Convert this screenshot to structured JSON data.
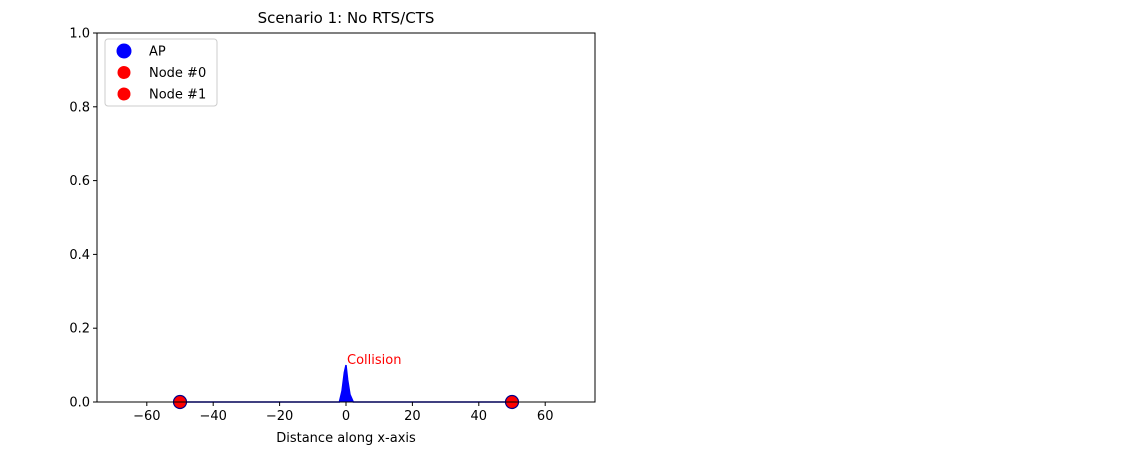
{
  "chart_data": {
    "type": "area",
    "title": "Scenario 1: No RTS/CTS",
    "xlabel": "Distance along x-axis",
    "ylabel": "",
    "xlim": [
      -75,
      75
    ],
    "ylim": [
      0,
      1.0
    ],
    "xticks": [
      -60,
      -40,
      -20,
      0,
      20,
      40,
      60
    ],
    "xtick_labels": [
      "−60",
      "−40",
      "−20",
      "0",
      "20",
      "40",
      "60"
    ],
    "yticks": [
      0.0,
      0.2,
      0.4,
      0.6,
      0.8,
      1.0
    ],
    "ytick_labels": [
      "0.0",
      "0.2",
      "0.4",
      "0.6",
      "0.8",
      "1.0"
    ],
    "grid": false,
    "legend_position": "top-left",
    "legend": [
      {
        "label": "AP",
        "color": "#0000ff",
        "marker": "large-circle"
      },
      {
        "label": "Node #0",
        "color": "#ff0000",
        "marker": "circle"
      },
      {
        "label": "Node #1",
        "color": "#ff0000",
        "marker": "circle"
      }
    ],
    "points": [
      {
        "x": -50,
        "y": 0,
        "color": "#ff0000",
        "edge": "#00008b"
      },
      {
        "x": 50,
        "y": 0,
        "color": "#ff0000",
        "edge": "#00008b"
      }
    ],
    "signal": {
      "color": "#0000ff",
      "x": [
        -50,
        -2,
        -1.2,
        -0.5,
        0,
        0.5,
        1.2,
        2.2,
        50
      ],
      "y": [
        0,
        0,
        0.03,
        0.08,
        0.1,
        0.06,
        0.02,
        0,
        0
      ]
    },
    "annotation": {
      "text": "Collision",
      "x": 0,
      "y": 0.1,
      "color": "#ff0000"
    }
  }
}
